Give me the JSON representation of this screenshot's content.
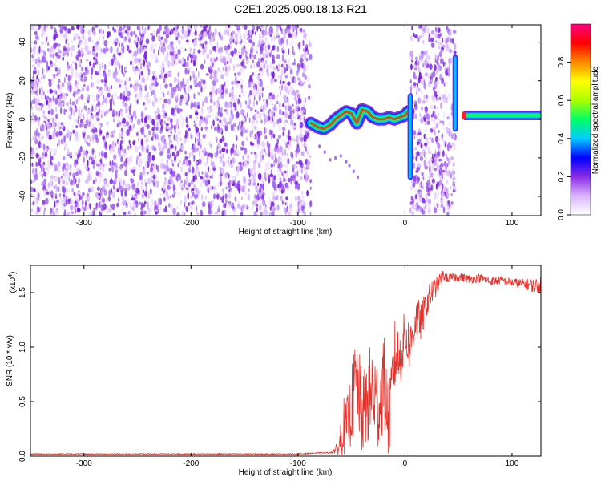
{
  "figure": {
    "title": "C2E1.2025.090.18.13.R21"
  },
  "chart_data": [
    {
      "type": "heatmap",
      "xlabel": "Height of straight line (km)",
      "ylabel": "Frequency (Hz)",
      "xlim": [
        -350,
        127
      ],
      "ylim": [
        -50,
        49
      ],
      "xticks": [
        -300,
        -200,
        -100,
        0,
        100
      ],
      "xtick_labels": [
        "-300",
        "-200",
        "-100",
        "0",
        "100"
      ],
      "yticks": [
        -40,
        -20,
        0,
        20,
        40
      ],
      "ytick_labels": [
        "-40",
        "-20",
        "0",
        "20",
        "40"
      ],
      "colorbar": {
        "label": "Normalized spectral amplitude",
        "range": [
          0,
          1
        ],
        "ticks": [
          0.0,
          0.2,
          0.4,
          0.6,
          0.8
        ],
        "tick_labels": [
          "0.0",
          "0.2",
          "0.4",
          "0.6",
          "0.8"
        ],
        "colormap": [
          "#ffffff",
          "#d9b3ff",
          "#8a2be2",
          "#0000ff",
          "#00ccff",
          "#00ff66",
          "#aaff00",
          "#ffff00",
          "#ff8800",
          "#ff0000",
          "#ff0080"
        ]
      },
      "regions": [
        {
          "x": [
            -350,
            -88
          ],
          "description": "broadband noise"
        },
        {
          "x": [
            -88,
            5
          ],
          "description": "Doppler signal near 0 Hz"
        },
        {
          "x": [
            5,
            47
          ],
          "description": "broadband noise"
        },
        {
          "x": [
            47,
            127
          ],
          "description": "carrier near +2 Hz"
        }
      ],
      "signal_trace": {
        "x": [
          -88,
          -82,
          -76,
          -70,
          -65,
          -60,
          -55,
          -50,
          -45,
          -40,
          -35,
          -30,
          -25,
          -20,
          -15,
          -10,
          -5,
          0,
          3
        ],
        "y": [
          -2,
          -4,
          -5,
          -3,
          0,
          2,
          4,
          3,
          -2,
          5,
          4,
          1,
          0,
          0,
          1,
          0,
          1,
          2,
          4
        ]
      },
      "secondary_trace": {
        "x": [
          -80,
          -75,
          -70,
          -65,
          -60,
          -55,
          -52,
          -48,
          -44
        ],
        "y": [
          -14,
          -17,
          -21,
          -20,
          -19,
          -22,
          -24,
          -27,
          -30
        ]
      },
      "carrier": {
        "x": [
          55,
          127
        ],
        "y": 2
      }
    },
    {
      "type": "line",
      "xlabel": "Height of straight line (km)",
      "ylabel": "SNR (10 * v/v)",
      "scale_label": "(x10",
      "scale_exp": "4",
      "scale_close": ")",
      "xlim": [
        -350,
        127
      ],
      "ylim": [
        0,
        1.75
      ],
      "xticks": [
        -300,
        -200,
        -100,
        0,
        100
      ],
      "xtick_labels": [
        "-300",
        "-200",
        "-100",
        "0",
        "100"
      ],
      "yticks": [
        0,
        0.5,
        1.0,
        1.5
      ],
      "ytick_labels": [
        "0.0",
        "0.5",
        "1.0",
        "1.5"
      ],
      "series": [
        {
          "color": "#e8302a",
          "x": [
            -350,
            -300,
            -200,
            -120,
            -100,
            -80,
            -70,
            -62,
            -58,
            -55,
            -50,
            -45,
            -40,
            -35,
            -30,
            -25,
            -20,
            -15,
            -10,
            -5,
            0,
            5,
            10,
            15,
            20,
            25,
            30,
            35,
            40,
            50,
            60,
            70,
            80,
            90,
            100,
            110,
            120,
            127
          ],
          "y": [
            0.02,
            0.02,
            0.02,
            0.02,
            0.02,
            0.03,
            0.03,
            0.1,
            0.4,
            0.35,
            0.6,
            0.9,
            0.5,
            0.7,
            0.8,
            0.6,
            0.9,
            0.4,
            1.05,
            1.0,
            1.2,
            1.1,
            1.35,
            1.3,
            1.45,
            1.55,
            1.6,
            1.68,
            1.65,
            1.66,
            1.64,
            1.65,
            1.62,
            1.63,
            1.61,
            1.6,
            1.59,
            1.6
          ],
          "y_spread": [
            0,
            0,
            0,
            0,
            0,
            0,
            0,
            0.08,
            0.35,
            0.3,
            0.45,
            0.6,
            0.45,
            0.55,
            0.6,
            0.5,
            0.6,
            0.4,
            0.45,
            0.35,
            0.3,
            0.3,
            0.25,
            0.22,
            0.18,
            0.15,
            0.1,
            0.06,
            0.06,
            0.05,
            0.05,
            0.05,
            0.05,
            0.05,
            0.05,
            0.06,
            0.08,
            0.1
          ]
        }
      ]
    }
  ]
}
